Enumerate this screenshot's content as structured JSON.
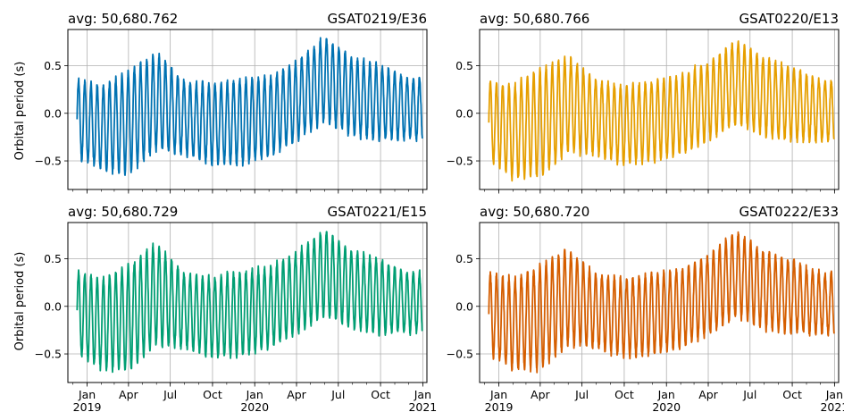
{
  "figure": {
    "ylabel": "Orbital period (s)"
  },
  "chart_data": [
    {
      "type": "line",
      "title_left": "avg: 50,680.762",
      "title_right": "GSAT0219/E36",
      "color": "#0072b2",
      "xlim": [
        "2018-11-20",
        "2021-01-10"
      ],
      "ylim": [
        -0.8,
        0.88
      ],
      "yticks": [
        -0.5,
        0.0,
        0.5
      ],
      "ytick_labels": [
        "−0.5",
        "0.0",
        "0.5"
      ],
      "show_xticklabels": false,
      "envelope": {
        "x": [
          "2018-12",
          "2019-02",
          "2019-04",
          "2019-06",
          "2019-08",
          "2019-10",
          "2019-12",
          "2020-02",
          "2020-04",
          "2020-06",
          "2020-08",
          "2020-10",
          "2020-12"
        ],
        "upper": [
          0.38,
          0.3,
          0.45,
          0.66,
          0.35,
          0.32,
          0.38,
          0.4,
          0.55,
          0.82,
          0.6,
          0.52,
          0.38
        ],
        "lower": [
          -0.45,
          -0.62,
          -0.65,
          -0.4,
          -0.45,
          -0.55,
          -0.55,
          -0.48,
          -0.3,
          -0.1,
          -0.25,
          -0.3,
          -0.28
        ]
      }
    },
    {
      "type": "line",
      "title_left": "avg: 50,680.766",
      "title_right": "GSAT0220/E13",
      "color": "#e69f00",
      "xlim": [
        "2018-11-20",
        "2021-01-10"
      ],
      "ylim": [
        -0.8,
        0.88
      ],
      "yticks": [
        -0.5,
        0.0,
        0.5
      ],
      "ytick_labels": [
        "−0.5",
        "0.0",
        "0.5"
      ],
      "show_xticklabels": false,
      "envelope": {
        "x": [
          "2018-12",
          "2019-02",
          "2019-04",
          "2019-06",
          "2019-08",
          "2019-10",
          "2019-12",
          "2020-02",
          "2020-04",
          "2020-06",
          "2020-08",
          "2020-10",
          "2020-12"
        ],
        "upper": [
          0.35,
          0.32,
          0.48,
          0.62,
          0.36,
          0.3,
          0.36,
          0.42,
          0.55,
          0.78,
          0.6,
          0.5,
          0.36
        ],
        "lower": [
          -0.48,
          -0.7,
          -0.68,
          -0.42,
          -0.45,
          -0.55,
          -0.52,
          -0.45,
          -0.3,
          -0.12,
          -0.25,
          -0.3,
          -0.3
        ]
      }
    },
    {
      "type": "line",
      "title_left": "avg: 50,680.729",
      "title_right": "GSAT0221/E15",
      "color": "#009e73",
      "xlim": [
        "2018-11-20",
        "2021-01-10"
      ],
      "ylim": [
        -0.8,
        0.88
      ],
      "yticks": [
        -0.5,
        0.0,
        0.5
      ],
      "ytick_labels": [
        "−0.5",
        "0.0",
        "0.5"
      ],
      "show_xticklabels": true,
      "envelope": {
        "x": [
          "2018-12",
          "2019-02",
          "2019-04",
          "2019-06",
          "2019-08",
          "2019-10",
          "2019-12",
          "2020-02",
          "2020-04",
          "2020-06",
          "2020-08",
          "2020-10",
          "2020-12"
        ],
        "upper": [
          0.4,
          0.3,
          0.45,
          0.68,
          0.36,
          0.32,
          0.38,
          0.42,
          0.58,
          0.82,
          0.6,
          0.5,
          0.36
        ],
        "lower": [
          -0.48,
          -0.68,
          -0.7,
          -0.42,
          -0.45,
          -0.55,
          -0.55,
          -0.45,
          -0.3,
          -0.12,
          -0.25,
          -0.3,
          -0.28
        ]
      }
    },
    {
      "type": "line",
      "title_left": "avg: 50,680.720",
      "title_right": "GSAT0222/E33",
      "color": "#d55e00",
      "xlim": [
        "2018-11-20",
        "2021-01-10"
      ],
      "ylim": [
        -0.8,
        0.88
      ],
      "yticks": [
        -0.5,
        0.0,
        0.5
      ],
      "ytick_labels": [
        "−0.5",
        "0.0",
        "0.5"
      ],
      "show_xticklabels": true,
      "envelope": {
        "x": [
          "2018-12",
          "2019-02",
          "2019-04",
          "2019-06",
          "2019-08",
          "2019-10",
          "2019-12",
          "2020-02",
          "2020-04",
          "2020-06",
          "2020-08",
          "2020-10",
          "2020-12"
        ],
        "upper": [
          0.38,
          0.3,
          0.45,
          0.62,
          0.35,
          0.3,
          0.36,
          0.4,
          0.55,
          0.8,
          0.6,
          0.5,
          0.36
        ],
        "lower": [
          -0.5,
          -0.68,
          -0.68,
          -0.42,
          -0.45,
          -0.55,
          -0.52,
          -0.45,
          -0.3,
          -0.12,
          -0.25,
          -0.3,
          -0.3
        ]
      }
    }
  ],
  "xticks": [
    {
      "date": "2019-01-01",
      "label": "Jan",
      "year": "2019"
    },
    {
      "date": "2019-04-01",
      "label": "Apr"
    },
    {
      "date": "2019-07-01",
      "label": "Jul"
    },
    {
      "date": "2019-10-01",
      "label": "Oct"
    },
    {
      "date": "2020-01-01",
      "label": "Jan",
      "year": "2020"
    },
    {
      "date": "2020-04-01",
      "label": "Apr"
    },
    {
      "date": "2020-07-01",
      "label": "Jul"
    },
    {
      "date": "2020-10-01",
      "label": "Oct"
    },
    {
      "date": "2021-01-01",
      "label": "Jan",
      "year": "2021"
    }
  ]
}
